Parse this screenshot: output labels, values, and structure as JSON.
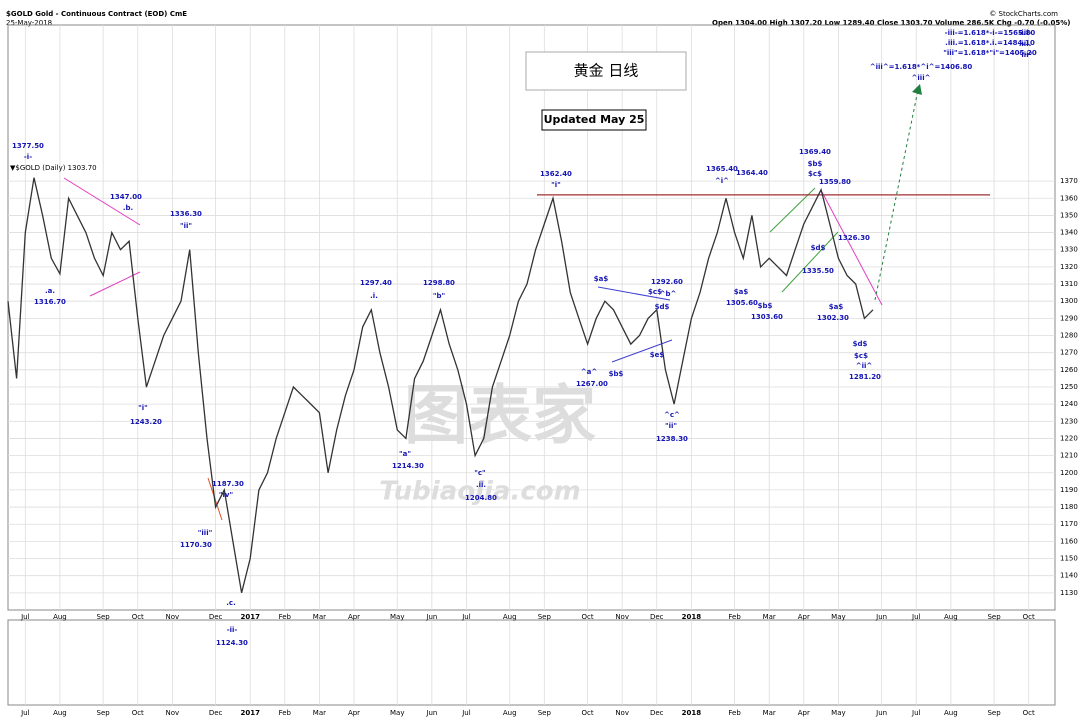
{
  "header": {
    "symbol": "$GOLD Gold - Continuous Contract (EOD) CmE",
    "date": "25-May-2018",
    "quote": "Open 1304.00  High 1307.20  Low 1289.40  Close 1303.70  Volume 286.5K  Chg -0.70 (-0.05%)",
    "source": "© StockCharts.com"
  },
  "chart_data": {
    "type": "line",
    "title": "黄金  日线",
    "subtitle": "Updated May 25",
    "legend": "▼$GOLD (Daily) 1303.70",
    "categories": [
      null,
      null,
      "Jul",
      null,
      null,
      null,
      "Aug",
      null,
      null,
      null,
      null,
      "Sep",
      null,
      null,
      null,
      "Oct",
      null,
      null,
      null,
      "Nov",
      null,
      null,
      null,
      null,
      "Dec",
      null,
      null,
      null,
      "2017",
      null,
      null,
      null,
      "Feb",
      null,
      null,
      null,
      "Mar",
      null,
      null,
      null,
      "Apr",
      null,
      null,
      null,
      null,
      "May",
      null,
      null,
      null,
      "Jun",
      null,
      null,
      null,
      "Jul",
      null,
      null,
      null,
      null,
      "Aug",
      null,
      null,
      null,
      "Sep",
      null,
      null,
      null,
      null,
      "Oct",
      null,
      null,
      null,
      "Nov",
      null,
      null,
      null,
      "Dec",
      null,
      null,
      null,
      "2018",
      null,
      null,
      null,
      null,
      "Feb",
      null,
      null,
      null,
      "Mar",
      null,
      null,
      null,
      "Apr",
      null,
      null,
      null,
      "May",
      null,
      null,
      null,
      null,
      "Jun",
      null,
      null,
      null,
      "Jul",
      null,
      null,
      null,
      "Aug",
      null,
      null,
      null,
      null,
      "Sep",
      null,
      null,
      null,
      "Oct",
      null,
      null
    ],
    "series": [
      {
        "name": "$GOLD",
        "color": "#333333",
        "values": [
          1300,
          1255,
          1340,
          1372,
          1350,
          1325,
          1316,
          1360,
          1350,
          1340,
          1325,
          1315,
          1340,
          1330,
          1335,
          1290,
          1250,
          1265,
          1280,
          1290,
          1300,
          1330,
          1270,
          1220,
          1180,
          1190,
          1160,
          1130,
          1150,
          1190,
          1200,
          1220,
          1235,
          1250,
          1245,
          1240,
          1235,
          1200,
          1225,
          1245,
          1260,
          1285,
          1295,
          1270,
          1250,
          1225,
          1220,
          1255,
          1265,
          1280,
          1295,
          1275,
          1260,
          1240,
          1210,
          1220,
          1250,
          1265,
          1280,
          1300,
          1310,
          1330,
          1345,
          1360,
          1335,
          1305,
          1290,
          1275,
          1290,
          1300,
          1295,
          1285,
          1275,
          1280,
          1290,
          1295,
          1260,
          1240,
          1265,
          1290,
          1305,
          1325,
          1340,
          1360,
          1340,
          1325,
          1350,
          1320,
          1325,
          1320,
          1315,
          1330,
          1345,
          1355,
          1365,
          1345,
          1325,
          1315,
          1310,
          1290,
          1295,
          null,
          null,
          null,
          null,
          null,
          null,
          null,
          null,
          null,
          null,
          null,
          null,
          null,
          null,
          null,
          null,
          null,
          null,
          null,
          null
        ]
      }
    ],
    "ylim": [
      1120,
      1461
    ],
    "yticks": [
      1130,
      1140,
      1150,
      1160,
      1170,
      1180,
      1190,
      1200,
      1210,
      1220,
      1230,
      1240,
      1250,
      1260,
      1270,
      1280,
      1290,
      1300,
      1310,
      1320,
      1330,
      1340,
      1350,
      1360,
      1370
    ],
    "grid": true,
    "resistance": 1362,
    "annotations": [
      "1377.50",
      "-i-",
      "1316.70",
      ".a.",
      "1347.00",
      ".b.",
      "1336.30",
      "\"ii\"",
      "\"i\"",
      "1243.20",
      "1187.30",
      "\"iv\"",
      "\"iii\"",
      "1170.30",
      ".c.",
      "-ii-",
      "1124.30",
      "1297.40",
      ".i.",
      "\"a\"",
      "1214.30",
      "1298.80",
      "\"b\"",
      "\"c\"",
      ".ii.",
      "1204.80",
      "1362.40",
      "\"i\"",
      "$a$",
      "1267.00",
      "^a^",
      "$b$",
      "1292.60",
      "$c$",
      "^b^",
      "$d$",
      "$e$",
      "^c^",
      "\"ii\"",
      "1238.30",
      "1365.40",
      "^i^",
      "1364.40",
      "$a$",
      "1305.60",
      "$b$",
      "1303.60",
      "1369.40",
      "$b$",
      "$c$",
      "1359.80",
      "$d$",
      "1335.50",
      "1326.30",
      "1302.30",
      "$a$",
      "$d$",
      "$c$",
      "^ii^",
      "1281.20",
      "-iii-=1.618*-i-=1565.80",
      ".iii.=1.618*.i.=1484.10",
      "\"iii\"=1.618*\"i\"=1405.20",
      "^iii^=1.618*^i^=1406.80",
      "^iii^",
      "-iii-",
      ".iii.",
      "\"iii\""
    ],
    "watermark": [
      "图表家",
      "Tubiaojia.com"
    ]
  }
}
